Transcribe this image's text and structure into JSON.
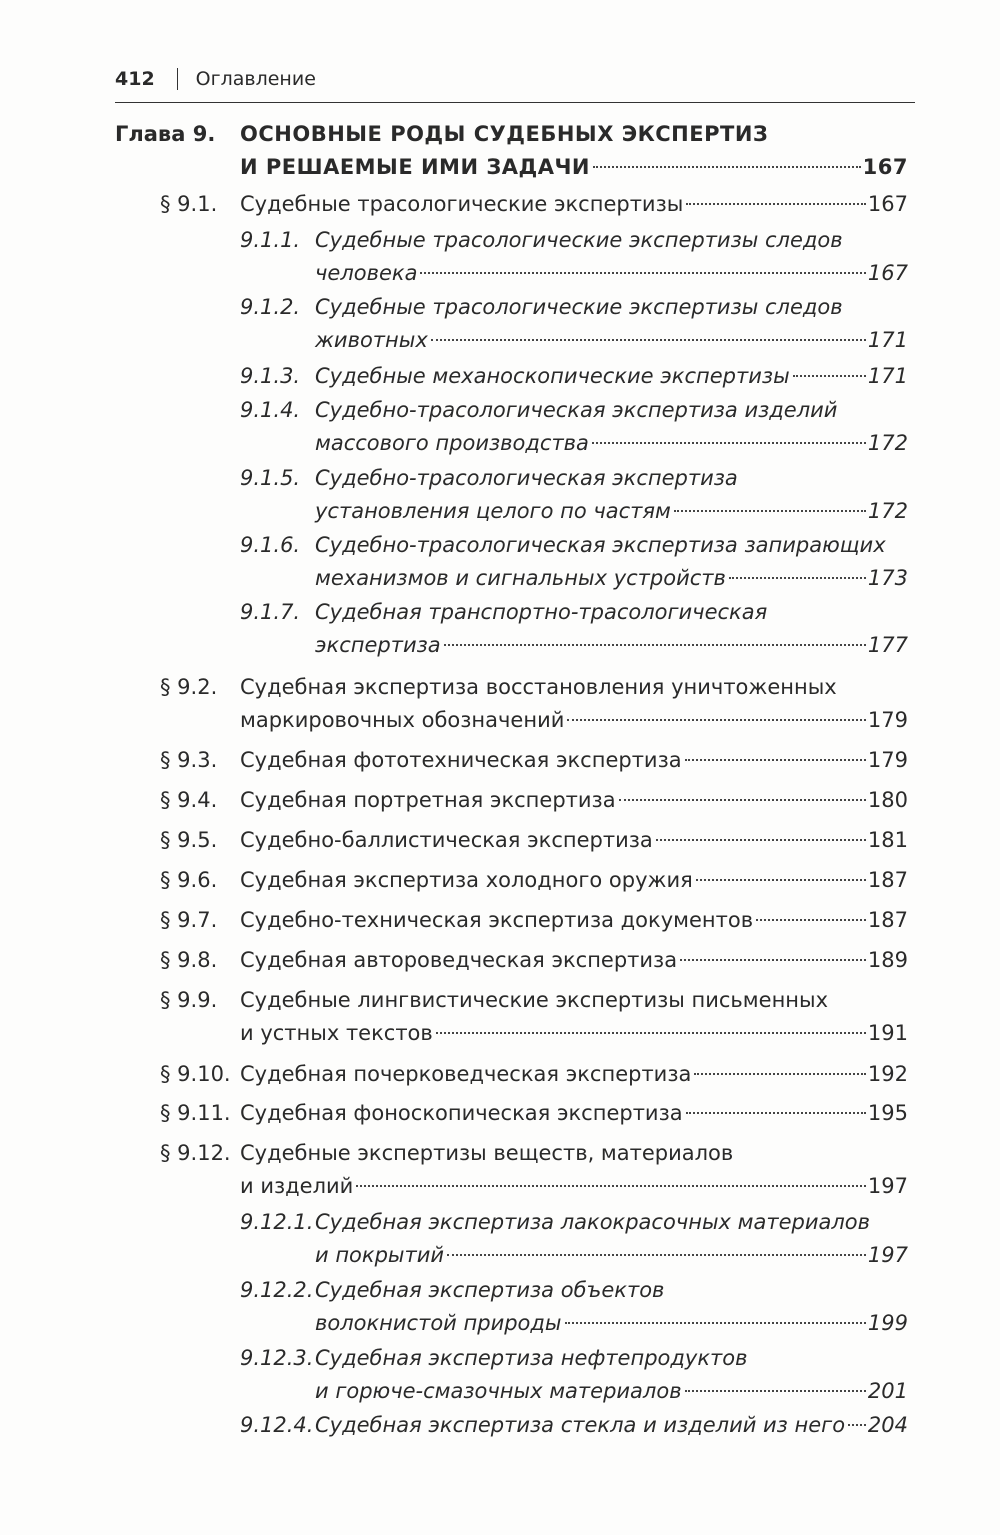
{
  "header": {
    "page_number": "412",
    "section": "Оглавление"
  },
  "entries": [
    {
      "num": "Глава 9.",
      "lines": [
        "ОСНОВНЫЕ РОДЫ СУДЕБНЫХ ЭКСПЕРТИЗ",
        "И РЕШАЕМЫЕ ИМИ ЗАДАЧИ"
      ],
      "page": "167"
    },
    {
      "num": "§ 9.1.",
      "lines": [
        "Судебные трасологические экспертизы"
      ],
      "page": "167"
    },
    {
      "num": "9.1.1.",
      "lines": [
        "Судебные трасологические экспертизы следов",
        "человека"
      ],
      "page": "167"
    },
    {
      "num": "9.1.2.",
      "lines": [
        "Судебные трасологические экспертизы следов",
        "животных"
      ],
      "page": "171"
    },
    {
      "num": "9.1.3.",
      "lines": [
        "Судебные механоскопические экспертизы"
      ],
      "page": "171"
    },
    {
      "num": "9.1.4.",
      "lines": [
        "Судебно-трасологическая экспертиза изделий",
        "массового производства"
      ],
      "page": "172"
    },
    {
      "num": "9.1.5.",
      "lines": [
        "Судебно-трасологическая экспертиза",
        "установления целого по частям"
      ],
      "page": "172"
    },
    {
      "num": "9.1.6.",
      "lines": [
        "Судебно-трасологическая экспертиза запирающих",
        "механизмов и сигнальных устройств"
      ],
      "page": "173"
    },
    {
      "num": "9.1.7.",
      "lines": [
        "Судебная транспортно-трасологическая",
        "экспертиза"
      ],
      "page": "177"
    },
    {
      "num": "§ 9.2.",
      "lines": [
        "Судебная экспертиза восстановления уничтоженных",
        "маркировочных обозначений"
      ],
      "page": "179"
    },
    {
      "num": "§ 9.3.",
      "lines": [
        "Судебная фототехническая экспертиза"
      ],
      "page": "179"
    },
    {
      "num": "§ 9.4.",
      "lines": [
        "Судебная портретная экспертиза"
      ],
      "page": "180"
    },
    {
      "num": "§ 9.5.",
      "lines": [
        "Судебно-баллистическая экспертиза"
      ],
      "page": "181"
    },
    {
      "num": "§ 9.6.",
      "lines": [
        "Судебная экспертиза холодного оружия"
      ],
      "page": "187"
    },
    {
      "num": "§ 9.7.",
      "lines": [
        "Судебно-техническая экспертиза документов"
      ],
      "page": "187"
    },
    {
      "num": "§ 9.8.",
      "lines": [
        "Судебная автороведческая экспертиза"
      ],
      "page": "189"
    },
    {
      "num": "§ 9.9.",
      "lines": [
        "Судебные лингвистические экспертизы письменных",
        "и устных текстов"
      ],
      "page": "191"
    },
    {
      "num": "§ 9.10.",
      "lines": [
        "Судебная почерковедческая экспертиза"
      ],
      "page": "192"
    },
    {
      "num": "§ 9.11.",
      "lines": [
        "Судебная фоноскопическая экспертиза"
      ],
      "page": "195"
    },
    {
      "num": "§ 9.12.",
      "lines": [
        "Судебные экспертизы веществ, материалов",
        "и изделий"
      ],
      "page": "197"
    },
    {
      "num": "9.12.1.",
      "lines": [
        "Судебная экспертиза лакокрасочных материалов",
        "и покрытий"
      ],
      "page": "197"
    },
    {
      "num": "9.12.2.",
      "lines": [
        "Судебная экспертиза объектов",
        "волокнистой природы"
      ],
      "page": "199"
    },
    {
      "num": "9.12.3.",
      "lines": [
        "Судебная экспертиза нефтепродуктов",
        "и горюче-смазочных материалов"
      ],
      "page": "201"
    },
    {
      "num": "9.12.4.",
      "lines": [
        "Судебная экспертиза стекла и изделий из него"
      ],
      "page": "204"
    }
  ]
}
